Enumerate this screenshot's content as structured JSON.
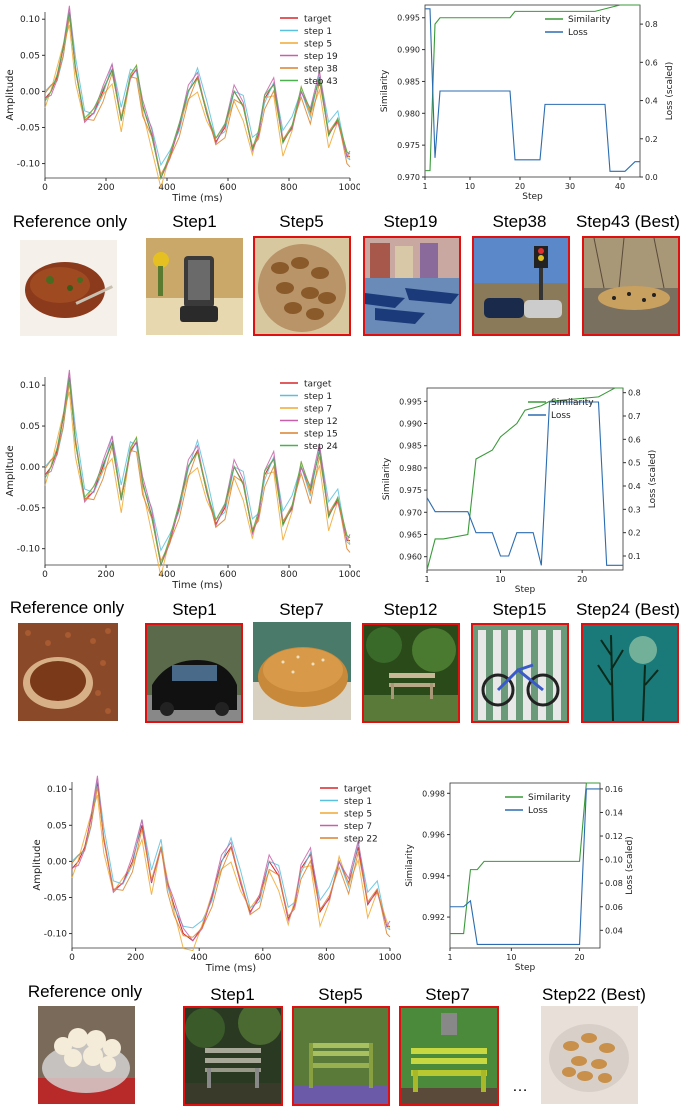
{
  "figures": [
    {
      "wave": {
        "xlabel": "Time (ms)",
        "ylabel": "Amplitude",
        "xticks": [
          "0",
          "200",
          "400",
          "600",
          "800",
          "1000"
        ],
        "yticks": [
          "0.10",
          "0.05",
          "0.00",
          "-0.05",
          "-0.10"
        ],
        "legend": [
          "target",
          "step 1",
          "step 5",
          "step 19",
          "step 38",
          "step 43"
        ]
      },
      "sim": {
        "xlabel": "Step",
        "ylabel": "Similarity",
        "y2label": "Loss (scaled)",
        "xticks": [
          "1",
          "10",
          "20",
          "30",
          "40"
        ],
        "yticks": [
          "0.995",
          "0.990",
          "0.985",
          "0.980",
          "0.975",
          "0.970"
        ],
        "y2ticks": [
          "0.8",
          "0.6",
          "0.4",
          "0.2",
          "0.0"
        ],
        "legend": [
          "Similarity",
          "Loss"
        ]
      },
      "captions": [
        "Reference only",
        "Step1",
        "Step5",
        "Step19",
        "Step38",
        "Step43 (Best)"
      ]
    },
    {
      "wave": {
        "xlabel": "Time (ms)",
        "ylabel": "Amplitude",
        "xticks": [
          "0",
          "200",
          "400",
          "600",
          "800",
          "1000"
        ],
        "yticks": [
          "0.10",
          "0.05",
          "0.00",
          "-0.05",
          "-0.10"
        ],
        "legend": [
          "target",
          "step 1",
          "step 7",
          "step 12",
          "step 15",
          "step 24"
        ]
      },
      "sim": {
        "xlabel": "Step",
        "ylabel": "Similarity",
        "y2label": "Loss (scaled)",
        "xticks": [
          "1",
          "10",
          "20"
        ],
        "yticks": [
          "0.995",
          "0.990",
          "0.985",
          "0.980",
          "0.975",
          "0.970",
          "0.965",
          "0.960"
        ],
        "y2ticks": [
          "0.8",
          "0.7",
          "0.6",
          "0.5",
          "0.4",
          "0.3",
          "0.2",
          "0.1"
        ],
        "legend": [
          "Similarity",
          "Loss"
        ]
      },
      "captions": [
        "Reference only",
        "Step1",
        "Step7",
        "Step12",
        "Step15",
        "Step24 (Best)"
      ]
    },
    {
      "wave": {
        "xlabel": "Time (ms)",
        "ylabel": "Amplitude",
        "xticks": [
          "0",
          "200",
          "400",
          "600",
          "800",
          "1000"
        ],
        "yticks": [
          "0.10",
          "0.05",
          "0.00",
          "-0.05",
          "-0.10"
        ],
        "legend": [
          "target",
          "step 1",
          "step 5",
          "step 7",
          "step 22"
        ]
      },
      "sim": {
        "xlabel": "Step",
        "ylabel": "Similarity",
        "y2label": "Loss (scaled)",
        "xticks": [
          "1",
          "10",
          "20"
        ],
        "yticks": [
          "0.998",
          "0.996",
          "0.994",
          "0.992"
        ],
        "y2ticks": [
          "0.16",
          "0.14",
          "0.12",
          "0.10",
          "0.08",
          "0.06",
          "0.04"
        ],
        "legend": [
          "Similarity",
          "Loss"
        ]
      },
      "captions": [
        "Reference only",
        "Step1",
        "Step5",
        "Step7",
        "…",
        "Step22 (Best)"
      ]
    }
  ],
  "colors": {
    "target": "#d62728",
    "cyan": "#5bc0de",
    "orange": "#f0a830",
    "magenta": "#c760a8",
    "darkorange": "#d9822b",
    "green": "#4caf50",
    "similarity": "#3a9a3a",
    "loss": "#2b6cb0"
  },
  "chart_data": [
    {
      "type": "line",
      "xlabel": "Time (ms)",
      "ylabel": "Amplitude",
      "xlim": [
        0,
        1000
      ],
      "ylim": [
        -0.12,
        0.11
      ],
      "series": [
        {
          "name": "target",
          "x": [
            0,
            20,
            40,
            60,
            80,
            100,
            130,
            160,
            190,
            220,
            250,
            280,
            300,
            320,
            350,
            380,
            410,
            440,
            470,
            500,
            530,
            560,
            590,
            620,
            650,
            680,
            700,
            720,
            750,
            780,
            810,
            840,
            870,
            900,
            930,
            960,
            990,
            1000
          ],
          "values": [
            -0.01,
            0.0,
            0.02,
            0.06,
            0.11,
            0.03,
            -0.04,
            -0.03,
            0.0,
            0.03,
            -0.04,
            0.02,
            0.03,
            -0.02,
            -0.06,
            -0.12,
            -0.09,
            -0.05,
            0.0,
            0.02,
            -0.03,
            -0.07,
            -0.05,
            0.0,
            -0.02,
            -0.08,
            -0.06,
            -0.01,
            0.01,
            -0.07,
            -0.05,
            0.0,
            -0.03,
            0.02,
            -0.06,
            -0.04,
            -0.09,
            -0.09
          ]
        }
      ]
    },
    {
      "type": "line",
      "xlabel": "Step",
      "ylabel": "Similarity",
      "y2label": "Loss (scaled)",
      "xlim": [
        1,
        44
      ],
      "ylim": [
        0.97,
        0.997
      ],
      "series": [
        {
          "name": "Similarity",
          "x": [
            1,
            2,
            3,
            4,
            5,
            10,
            18,
            19,
            25,
            30,
            35,
            40,
            43,
            44
          ],
          "values": [
            0.971,
            0.971,
            0.994,
            0.995,
            0.995,
            0.995,
            0.995,
            0.996,
            0.996,
            0.996,
            0.996,
            0.997,
            0.997,
            0.997
          ]
        },
        {
          "name": "Loss",
          "x": [
            1,
            2,
            3,
            4,
            5,
            10,
            18,
            19,
            24,
            25,
            32,
            37,
            38,
            41,
            43,
            44
          ],
          "values": [
            0.88,
            0.88,
            0.1,
            0.45,
            0.45,
            0.45,
            0.45,
            0.09,
            0.09,
            0.38,
            0.38,
            0.38,
            0.03,
            0.03,
            0.08,
            0.08
          ]
        }
      ]
    },
    {
      "type": "line",
      "xlabel": "Time (ms)",
      "ylabel": "Amplitude",
      "xlim": [
        0,
        1000
      ],
      "ylim": [
        -0.12,
        0.11
      ],
      "series": [
        {
          "name": "target",
          "x": [
            0,
            20,
            40,
            60,
            80,
            100,
            130,
            160,
            190,
            220,
            250,
            280,
            300,
            320,
            350,
            380,
            410,
            440,
            470,
            500,
            530,
            560,
            590,
            620,
            650,
            680,
            700,
            720,
            750,
            780,
            810,
            840,
            870,
            900,
            930,
            960,
            990,
            1000
          ],
          "values": [
            -0.01,
            0.0,
            0.02,
            0.06,
            0.11,
            0.03,
            -0.04,
            -0.03,
            0.0,
            0.03,
            -0.04,
            0.02,
            0.03,
            -0.02,
            -0.06,
            -0.12,
            -0.09,
            -0.05,
            0.0,
            0.02,
            -0.03,
            -0.07,
            -0.05,
            0.0,
            -0.02,
            -0.08,
            -0.06,
            -0.01,
            0.01,
            -0.07,
            -0.05,
            0.0,
            -0.03,
            0.02,
            -0.06,
            -0.04,
            -0.09,
            -0.09
          ]
        }
      ]
    },
    {
      "type": "line",
      "xlabel": "Step",
      "ylabel": "Similarity",
      "y2label": "Loss (scaled)",
      "xlim": [
        1,
        25
      ],
      "ylim": [
        0.957,
        0.998
      ],
      "series": [
        {
          "name": "Similarity",
          "x": [
            1,
            2,
            3,
            6,
            7,
            9,
            10,
            12,
            13,
            15,
            16,
            22,
            23,
            24,
            25
          ],
          "values": [
            0.957,
            0.964,
            0.964,
            0.965,
            0.982,
            0.984,
            0.987,
            0.99,
            0.993,
            0.994,
            0.995,
            0.996,
            0.997,
            0.998,
            0.998
          ]
        },
        {
          "name": "Loss",
          "x": [
            1,
            2,
            3,
            6,
            7,
            9,
            10,
            11,
            12,
            13,
            14,
            15,
            16,
            22,
            23,
            24,
            25
          ],
          "values": [
            0.35,
            0.29,
            0.29,
            0.29,
            0.2,
            0.2,
            0.1,
            0.1,
            0.2,
            0.2,
            0.2,
            0.06,
            0.76,
            0.76,
            0.06,
            0.06,
            0.06
          ]
        }
      ]
    },
    {
      "type": "line",
      "xlabel": "Time (ms)",
      "ylabel": "Amplitude",
      "xlim": [
        0,
        1000
      ],
      "ylim": [
        -0.12,
        0.11
      ],
      "series": [
        {
          "name": "target",
          "x": [
            0,
            20,
            40,
            60,
            80,
            100,
            130,
            160,
            190,
            220,
            250,
            280,
            300,
            320,
            350,
            380,
            410,
            440,
            470,
            500,
            530,
            560,
            590,
            620,
            650,
            680,
            700,
            720,
            750,
            780,
            810,
            840,
            870,
            900,
            930,
            960,
            990,
            1000
          ],
          "values": [
            -0.01,
            0.0,
            0.02,
            0.06,
            0.11,
            0.03,
            -0.04,
            -0.03,
            0.0,
            0.05,
            -0.03,
            0.02,
            -0.03,
            -0.06,
            -0.1,
            -0.11,
            -0.09,
            -0.05,
            0.0,
            0.02,
            -0.03,
            -0.07,
            -0.05,
            0.0,
            -0.02,
            -0.08,
            -0.06,
            -0.01,
            0.01,
            -0.07,
            -0.05,
            0.0,
            -0.03,
            0.02,
            -0.06,
            -0.04,
            -0.09,
            -0.09
          ]
        }
      ]
    },
    {
      "type": "line",
      "xlabel": "Step",
      "ylabel": "Similarity",
      "y2label": "Loss (scaled)",
      "xlim": [
        1,
        23
      ],
      "ylim": [
        0.9905,
        0.9985
      ],
      "series": [
        {
          "name": "Similarity",
          "x": [
            1,
            2,
            3,
            4,
            5,
            6,
            7,
            18,
            19,
            20,
            21,
            22,
            23
          ],
          "values": [
            0.9912,
            0.9912,
            0.9912,
            0.9943,
            0.9943,
            0.9947,
            0.9947,
            0.9947,
            0.9947,
            0.9947,
            0.9985,
            0.9985,
            0.9985
          ]
        },
        {
          "name": "Loss",
          "x": [
            1,
            2,
            3,
            4,
            5,
            6,
            7,
            18,
            19,
            20,
            21,
            22,
            23
          ],
          "values": [
            0.06,
            0.06,
            0.06,
            0.065,
            0.028,
            0.028,
            0.028,
            0.028,
            0.028,
            0.028,
            0.16,
            0.16,
            0.16
          ]
        }
      ]
    }
  ]
}
